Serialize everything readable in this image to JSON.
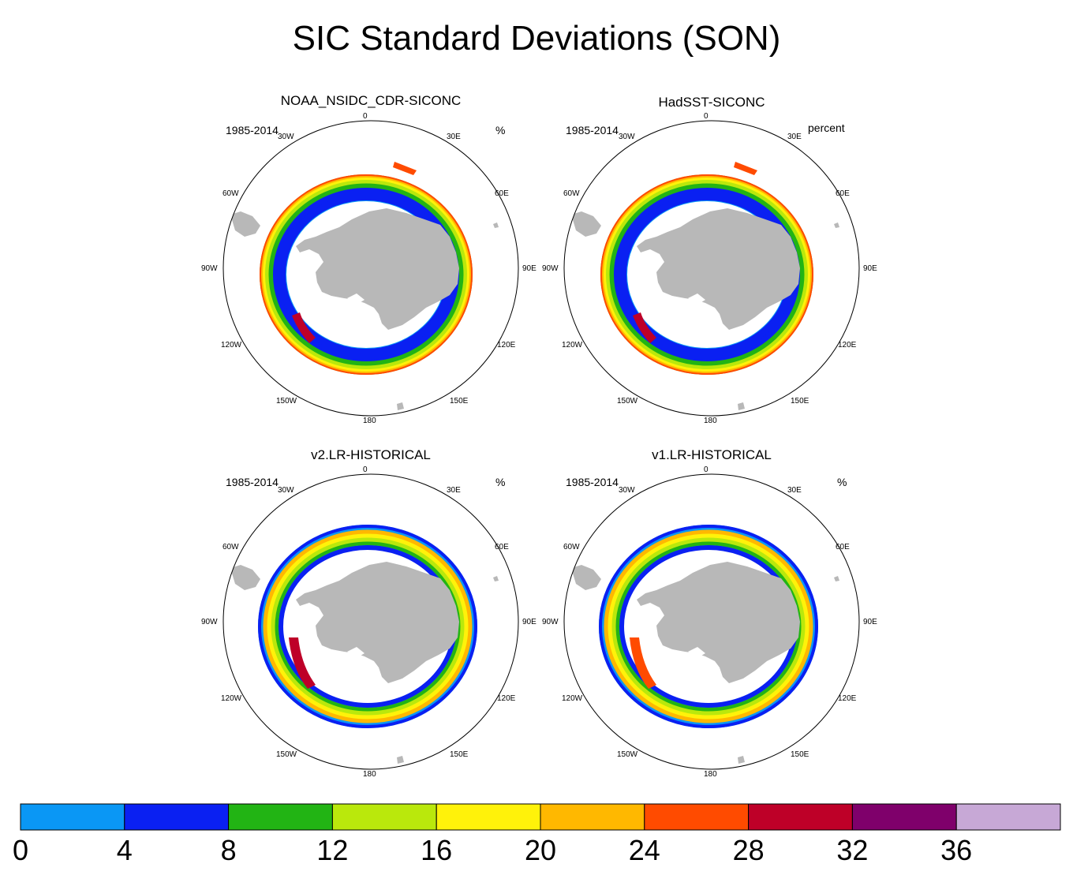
{
  "title": "SIC Standard Deviations (SON)",
  "panels": [
    {
      "title": "NOAA_NSIDC_CDR-SICONC",
      "period": "1985-2014",
      "units": "%",
      "style": "obs1"
    },
    {
      "title": "HadSST-SICONC",
      "period": "1985-2014",
      "units": "percent",
      "style": "obs2"
    },
    {
      "title": "v2.LR-HISTORICAL",
      "period": "1985-2014",
      "units": "%",
      "style": "model1"
    },
    {
      "title": "v1.LR-HISTORICAL",
      "period": "1985-2014",
      "units": "%",
      "style": "model2"
    }
  ],
  "longitude_labels": [
    "0",
    "30E",
    "60E",
    "90E",
    "120E",
    "150E",
    "180",
    "150W",
    "120W",
    "90W",
    "60W",
    "30W"
  ],
  "colorbar": {
    "labels": [
      "0",
      "4",
      "8",
      "12",
      "16",
      "20",
      "24",
      "28",
      "32",
      "36"
    ],
    "colors": [
      "#0a97f5",
      "#0a20f2",
      "#22b414",
      "#bae80c",
      "#fff20a",
      "#ffb800",
      "#ff4b00",
      "#be0028",
      "#7f006b",
      "#c7a8d6"
    ]
  },
  "map_colors": {
    "land": "#b8b8b8",
    "ocean": "#ffffff"
  }
}
